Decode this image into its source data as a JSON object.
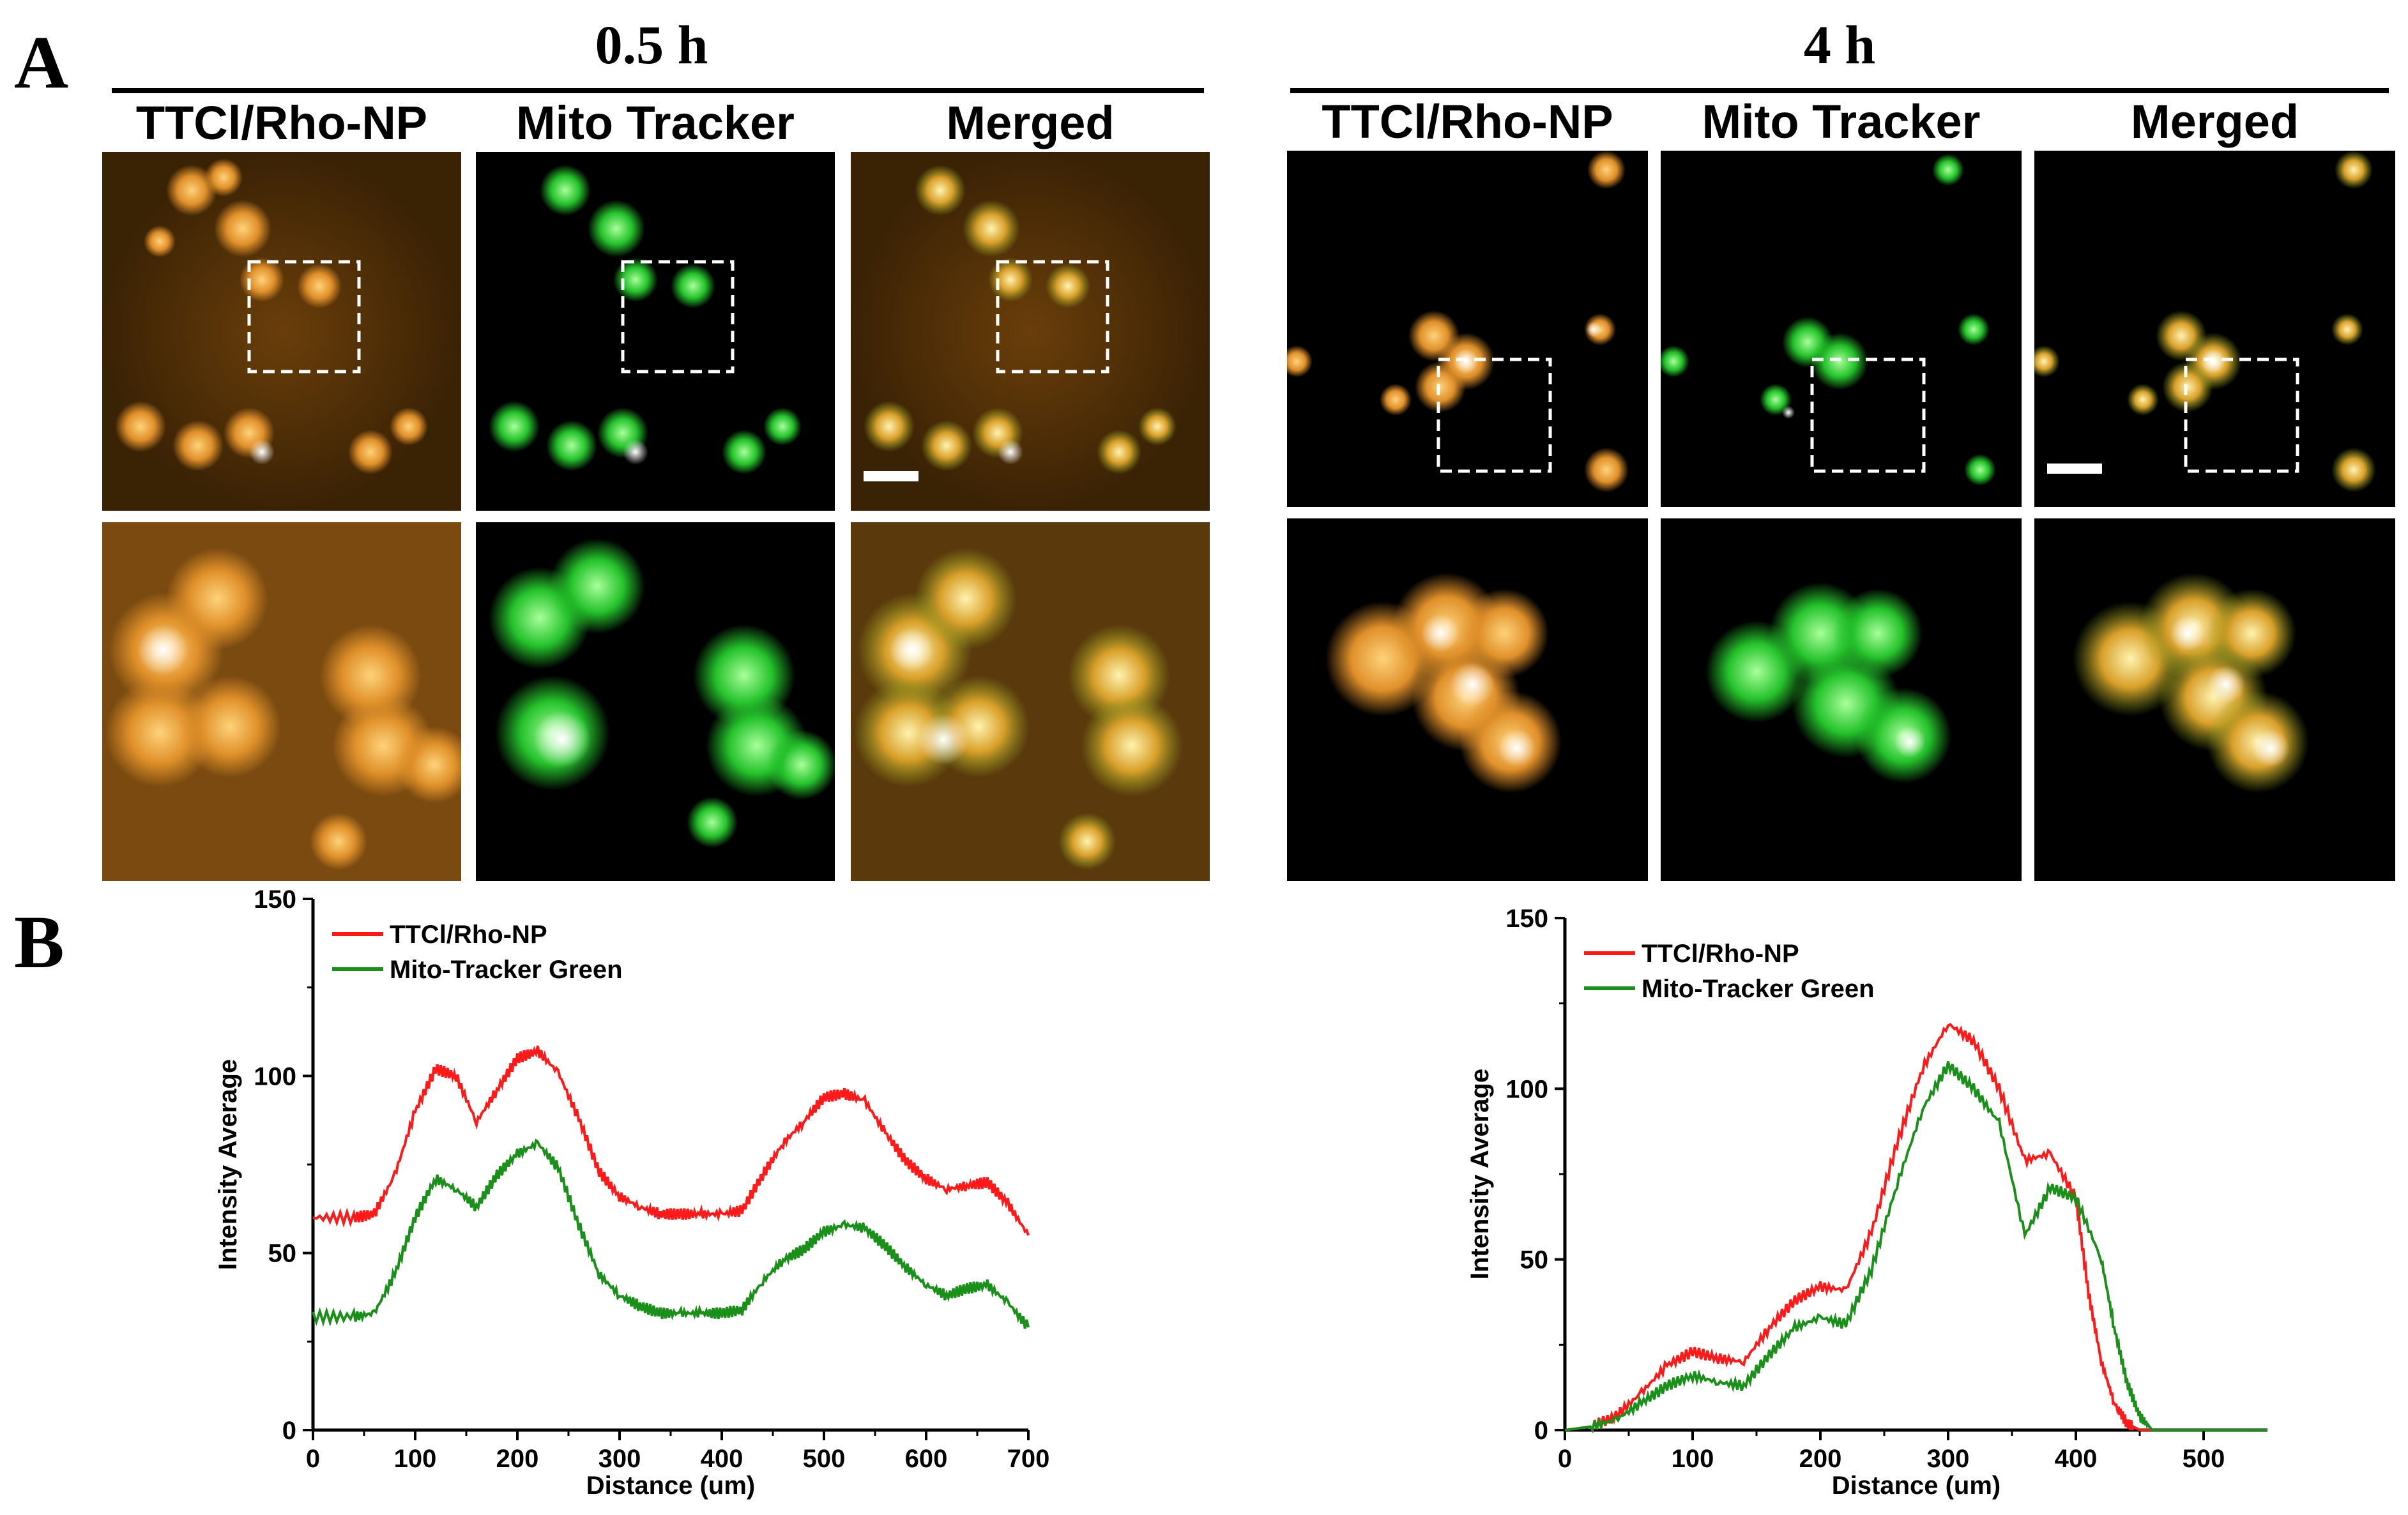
{
  "panelA": {
    "label": "A",
    "groups": [
      {
        "time": "0.5 h",
        "columns": [
          "TTCl/Rho-NP",
          "Mito Tracker",
          "Merged"
        ]
      },
      {
        "time": "4 h",
        "columns": [
          "TTCl/Rho-NP",
          "Mito Tracker",
          "Merged"
        ]
      }
    ],
    "colors": {
      "orange_channel": "#d9902a",
      "green_channel": "#22c02a",
      "dark_background": "#000000"
    }
  },
  "panelB": {
    "label": "B"
  },
  "chart_data": [
    {
      "type": "line",
      "xlabel": "Distance (um)",
      "ylabel": "Intensity Average",
      "xlim": [
        0,
        700
      ],
      "ylim": [
        0,
        150
      ],
      "xticks": [
        0,
        100,
        200,
        300,
        400,
        500,
        600,
        700
      ],
      "yticks": [
        0,
        50,
        100,
        150
      ],
      "legend": "top-left",
      "series": [
        {
          "name": "TTCl/Rho-NP",
          "color": "#ff1a1a",
          "x": [
            0,
            40,
            60,
            80,
            100,
            120,
            140,
            160,
            180,
            200,
            220,
            240,
            260,
            280,
            300,
            320,
            340,
            360,
            380,
            400,
            420,
            440,
            460,
            480,
            500,
            520,
            540,
            560,
            580,
            600,
            620,
            640,
            660,
            680,
            700
          ],
          "y": [
            60,
            60,
            61,
            72,
            90,
            102,
            100,
            87,
            96,
            105,
            107,
            101,
            88,
            73,
            66,
            63,
            61,
            61,
            61,
            61,
            62,
            72,
            81,
            87,
            94,
            95,
            93,
            84,
            76,
            71,
            68,
            69,
            70,
            64,
            55
          ]
        },
        {
          "name": "Mito-Tracker Green",
          "color": "#1a8f1a",
          "x": [
            0,
            40,
            60,
            80,
            100,
            120,
            140,
            160,
            180,
            200,
            220,
            240,
            260,
            280,
            300,
            320,
            340,
            360,
            380,
            400,
            420,
            440,
            460,
            480,
            500,
            520,
            540,
            560,
            580,
            600,
            620,
            640,
            660,
            680,
            700
          ],
          "y": [
            32,
            32,
            33,
            44,
            60,
            71,
            68,
            63,
            72,
            78,
            81,
            74,
            58,
            44,
            38,
            35,
            33,
            33,
            33,
            33,
            34,
            42,
            48,
            51,
            56,
            58,
            57,
            52,
            46,
            41,
            38,
            40,
            41,
            36,
            29
          ]
        }
      ]
    },
    {
      "type": "line",
      "xlabel": "Distance (um)",
      "ylabel": "Intensity Average",
      "xlim": [
        0,
        550
      ],
      "ylim": [
        0,
        150
      ],
      "xticks": [
        0,
        100,
        200,
        300,
        400,
        500
      ],
      "yticks": [
        0,
        50,
        100,
        150
      ],
      "legend": "top-left",
      "series": [
        {
          "name": "TTCl/Rho-NP",
          "color": "#ff1a1a",
          "x": [
            0,
            20,
            40,
            60,
            80,
            100,
            120,
            140,
            160,
            180,
            200,
            220,
            240,
            260,
            280,
            300,
            320,
            340,
            360,
            380,
            400,
            410,
            420,
            430,
            440,
            450,
            500,
            550
          ],
          "y": [
            0,
            1,
            4,
            11,
            19,
            23,
            21,
            20,
            30,
            38,
            42,
            41,
            58,
            84,
            106,
            119,
            114,
            100,
            79,
            81,
            68,
            40,
            20,
            8,
            2,
            0,
            0,
            0
          ]
        },
        {
          "name": "Mito-Tracker Green",
          "color": "#1a8f1a",
          "x": [
            0,
            20,
            40,
            60,
            80,
            100,
            120,
            140,
            160,
            180,
            200,
            220,
            240,
            260,
            280,
            300,
            320,
            340,
            360,
            380,
            400,
            420,
            430,
            440,
            450,
            460,
            500,
            550
          ],
          "y": [
            0,
            1,
            3,
            8,
            13,
            16,
            14,
            13,
            22,
            30,
            33,
            31,
            47,
            72,
            94,
            107,
            100,
            90,
            57,
            71,
            68,
            50,
            30,
            14,
            4,
            0,
            0,
            0
          ]
        }
      ]
    }
  ]
}
